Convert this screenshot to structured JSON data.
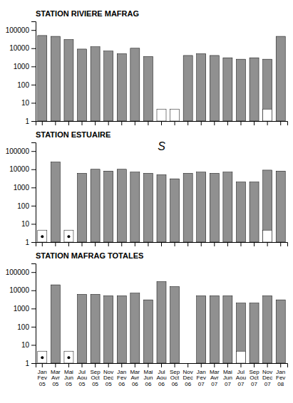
{
  "chart_data": [
    {
      "type": "bar",
      "title": "STATION RIVIERE MAFRAG",
      "categories": [
        null,
        null,
        null,
        null,
        null,
        null,
        null,
        null,
        null,
        null,
        null,
        null,
        null,
        null,
        null,
        null,
        null,
        null,
        null
      ],
      "values": [
        50000,
        45000,
        30000,
        9000,
        12000,
        7000,
        5000,
        10000,
        3500,
        null,
        null,
        4000,
        5000,
        4000,
        3000,
        2500,
        3000,
        2500,
        45000
      ],
      "flood_not_sampled": [
        9,
        10,
        17
      ],
      "no_sample": [],
      "color": "#909090",
      "log": "y",
      "ylim": [
        1,
        300000
      ],
      "yticks": [
        1,
        10,
        100,
        1000,
        10000,
        100000
      ],
      "grid": false
    },
    {
      "type": "bar",
      "title": "STATION ESTUAIRE",
      "annotation": "S",
      "categories": [
        null,
        null,
        null,
        null,
        null,
        null,
        null,
        null,
        null,
        null,
        null,
        null,
        null,
        null,
        null,
        null,
        null,
        null,
        null
      ],
      "values": [
        null,
        25000,
        null,
        6000,
        10000,
        8000,
        10000,
        7000,
        6000,
        5000,
        3000,
        6000,
        7000,
        6000,
        7000,
        2000,
        2000,
        9000,
        8000
      ],
      "flood_not_sampled": [
        0,
        2,
        17
      ],
      "no_sample": [
        0,
        2
      ],
      "color": "#909090",
      "log": "y",
      "ylim": [
        1,
        300000
      ],
      "yticks": [
        1,
        10,
        100,
        1000,
        10000,
        100000
      ],
      "grid": false
    },
    {
      "type": "bar",
      "title": "STATION MAFRAG TOTALES",
      "categories": [
        "Jan\nFev\n05",
        "Mar\nAvr\n05",
        "Mai\nJun\n05",
        "Jul\nAou\n05",
        "Sep\nOct\n05",
        "Nov\nDec\n05",
        "Jan\nFev\n06",
        "Mar\nAvr\n06",
        "Mai\nJun\n06",
        "Jul\nAou\n06",
        "Sep\nOct\n06",
        "Nov\nDec\n06",
        "Jan\nFev\n07",
        "Mar\nAvr\n07",
        "Mai\nJun\n07",
        "Jul\nAou\n07",
        "Sep\nOct\n07",
        "Nov\nDec\n07",
        "Jan\nFev\n08"
      ],
      "values": [
        null,
        20000,
        null,
        6000,
        6000,
        5000,
        5000,
        7000,
        3000,
        30000,
        16000,
        null,
        5000,
        5000,
        5000,
        2000,
        2000,
        5000,
        3000
      ],
      "flood_not_sampled": [
        0,
        2,
        15
      ],
      "no_sample": [
        0,
        2
      ],
      "color": "#909090",
      "log": "y",
      "ylim": [
        1,
        300000
      ],
      "yticks": [
        1,
        10,
        100,
        1000,
        10000,
        100000
      ],
      "grid": false
    }
  ]
}
